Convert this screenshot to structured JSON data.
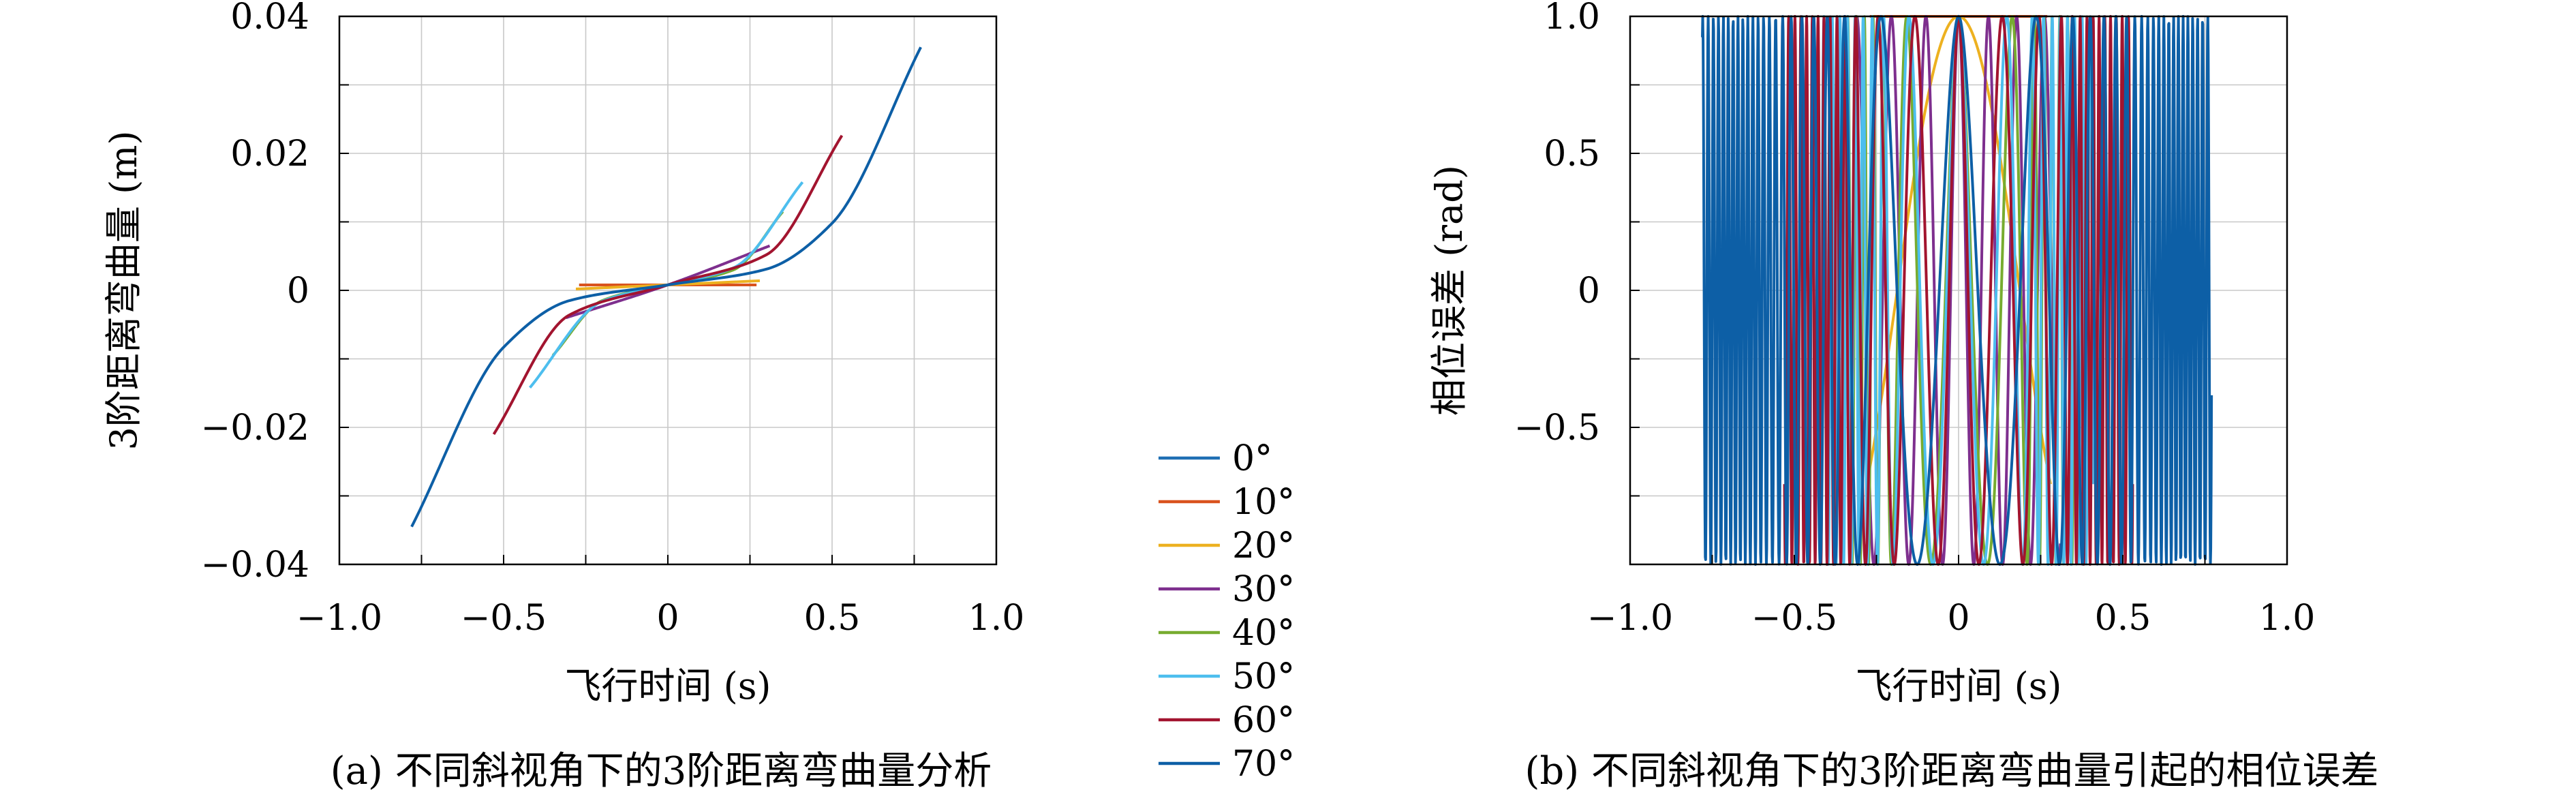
{
  "chart_data": [
    {
      "type": "line",
      "panel_caption": "(a) 不同斜视角下的3阶距离弯曲量分析",
      "xlabel": "飞行时间 (s)",
      "ylabel": "3阶距离弯曲量 (m)",
      "xlim": [
        -1.0,
        1.0
      ],
      "ylim": [
        -0.04,
        0.04
      ],
      "x_ticks": [
        -1.0,
        -0.5,
        0,
        0.5,
        1.0
      ],
      "x_tick_labels": [
        "−1.0",
        "−0.5",
        "0",
        "0.5",
        "1.0"
      ],
      "y_ticks": [
        -0.04,
        -0.02,
        0,
        0.02,
        0.04
      ],
      "y_tick_labels": [
        "−0.04",
        "−0.02",
        "0",
        "0.02",
        "0.04"
      ],
      "grid": true,
      "series": [
        {
          "name": "0°",
          "color": "#1f6fb4",
          "x_range": [
            -0.27,
            0.26
          ],
          "x": [
            -0.27,
            0.26
          ],
          "y": [
            0.0008,
            0.0008
          ]
        },
        {
          "name": "10°",
          "color": "#d9531e",
          "x_range": [
            -0.27,
            0.27
          ],
          "x": [
            -0.27,
            0,
            0.27
          ],
          "y": [
            0.0008,
            0.0008,
            0.0008
          ]
        },
        {
          "name": "20°",
          "color": "#edb120",
          "x_range": [
            -0.28,
            0.28
          ],
          "x": [
            -0.28,
            0,
            0.28
          ],
          "y": [
            0.0002,
            0.0008,
            0.0014
          ]
        },
        {
          "name": "30°",
          "color": "#7e2f8e",
          "x_range": [
            -0.31,
            0.31
          ],
          "x": [
            -0.31,
            0,
            0.31
          ],
          "y": [
            -0.004,
            0.0008,
            0.0065
          ]
        },
        {
          "name": "40°",
          "color": "#77ac30",
          "x_range": [
            -0.35,
            0.35
          ],
          "x": [
            -0.35,
            -0.2,
            0,
            0.2,
            0.35
          ],
          "y": [
            -0.0095,
            -0.0015,
            0.0008,
            0.003,
            0.0115
          ]
        },
        {
          "name": "50°",
          "color": "#4dbeee",
          "x_range": [
            -0.42,
            0.41
          ],
          "x": [
            -0.42,
            -0.2,
            0,
            0.2,
            0.41
          ],
          "y": [
            -0.0142,
            -0.0016,
            0.0008,
            0.0033,
            0.0158
          ]
        },
        {
          "name": "60°",
          "color": "#a2142f",
          "x_range": [
            -0.53,
            0.53
          ],
          "x": [
            -0.53,
            -0.3,
            0,
            0.3,
            0.53
          ],
          "y": [
            -0.021,
            -0.0036,
            0.0008,
            0.0052,
            0.0226
          ]
        },
        {
          "name": "70°",
          "color": "#0d5fa6",
          "x_range": [
            -0.78,
            0.77
          ],
          "x": [
            -0.78,
            -0.5,
            -0.3,
            0,
            0.3,
            0.5,
            0.77
          ],
          "y": [
            -0.0345,
            -0.0083,
            -0.0015,
            0.0008,
            0.0031,
            0.0098,
            0.0355
          ]
        }
      ]
    },
    {
      "type": "line",
      "panel_caption": "(b) 不同斜视角下的3阶距离弯曲量引起的相位误差",
      "xlabel": "飞行时间 (s)",
      "ylabel": "相位误差 (rad)",
      "xlim": [
        -1.0,
        1.0
      ],
      "ylim": [
        -1.0,
        1.0
      ],
      "x_ticks": [
        -1.0,
        -0.5,
        0,
        0.5,
        1.0
      ],
      "x_tick_labels": [
        "−1.0",
        "−0.5",
        "0",
        "0.5",
        "1.0"
      ],
      "y_ticks": [
        -0.5,
        0,
        0.5,
        1.0
      ],
      "y_tick_labels": [
        "−0.5",
        "0",
        "0.5",
        "1.0"
      ],
      "grid": true,
      "series": [
        {
          "name": "0°",
          "color": "#1f6fb4",
          "x_range": [
            -0.27,
            0.26
          ],
          "phase_cos_of": "0°"
        },
        {
          "name": "10°",
          "color": "#d9531e",
          "x_range": [
            -0.27,
            0.27
          ],
          "phase_cos_of": "10°"
        },
        {
          "name": "20°",
          "color": "#edb120",
          "x_range": [
            -0.28,
            0.28
          ],
          "phase_cos_of": "20°"
        },
        {
          "name": "30°",
          "color": "#7e2f8e",
          "x_range": [
            -0.31,
            0.31
          ],
          "phase_cos_of": "30°"
        },
        {
          "name": "40°",
          "color": "#77ac30",
          "x_range": [
            -0.35,
            0.35
          ],
          "phase_cos_of": "40°"
        },
        {
          "name": "50°",
          "color": "#4dbeee",
          "x_range": [
            -0.42,
            0.41
          ],
          "phase_cos_of": "50°"
        },
        {
          "name": "60°",
          "color": "#a2142f",
          "x_range": [
            -0.53,
            0.53
          ],
          "phase_cos_of": "60°"
        },
        {
          "name": "70°",
          "color": "#0d5fa6",
          "x_range": [
            -0.78,
            0.77
          ],
          "phase_cos_of": "70°"
        }
      ]
    }
  ],
  "legend": {
    "placement": "between panels, bottom",
    "entries": [
      "0°",
      "10°",
      "20°",
      "30°",
      "40°",
      "50°",
      "60°",
      "70°"
    ]
  }
}
